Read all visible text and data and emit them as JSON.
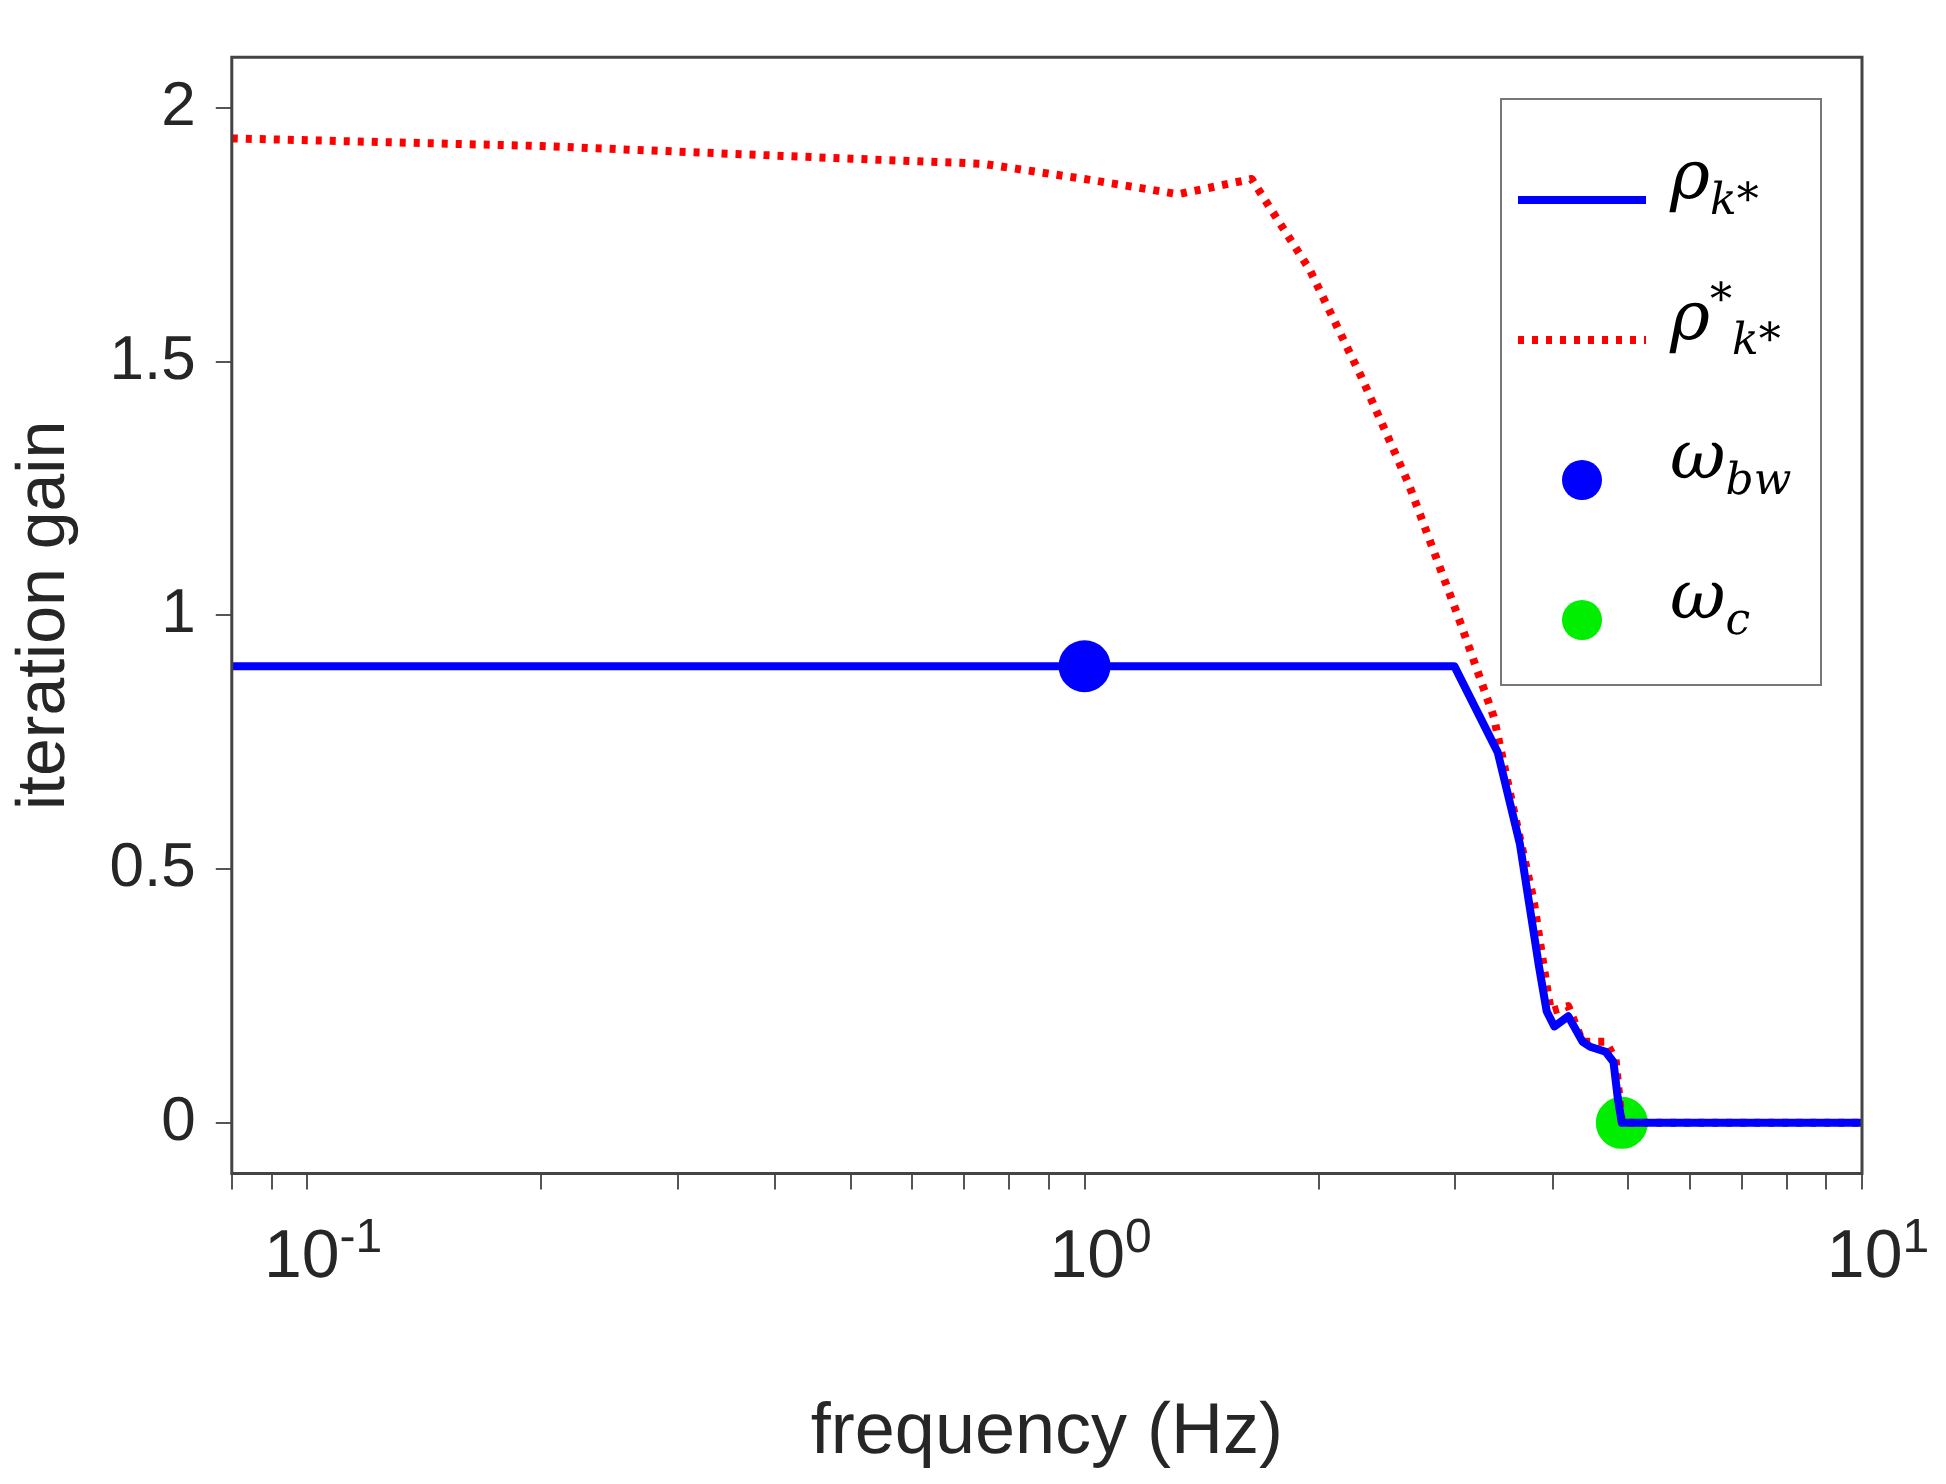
{
  "chart_data": {
    "type": "line",
    "xlabel": "frequency (Hz)",
    "ylabel": "iteration gain",
    "log": "x",
    "xlim": [
      0.08,
      10
    ],
    "ylim": [
      -0.1,
      2.1
    ],
    "xticks": [
      {
        "value": 0.08,
        "label": null
      },
      {
        "value": 0.09,
        "label": null
      },
      {
        "value": 0.1,
        "label": "10$^{-1}$"
      },
      {
        "value": 0.2,
        "label": null
      },
      {
        "value": 0.3,
        "label": null
      },
      {
        "value": 0.4,
        "label": null
      },
      {
        "value": 0.5,
        "label": null
      },
      {
        "value": 0.6,
        "label": null
      },
      {
        "value": 0.7,
        "label": null
      },
      {
        "value": 0.8,
        "label": null
      },
      {
        "value": 0.9,
        "label": null
      },
      {
        "value": 1,
        "label": "10$^{0}$"
      },
      {
        "value": 2,
        "label": null
      },
      {
        "value": 3,
        "label": null
      },
      {
        "value": 4,
        "label": null
      },
      {
        "value": 5,
        "label": null
      },
      {
        "value": 6,
        "label": null
      },
      {
        "value": 7,
        "label": null
      },
      {
        "value": 8,
        "label": null
      },
      {
        "value": 9,
        "label": null
      },
      {
        "value": 10,
        "label": "10$^{1}$"
      }
    ],
    "yticks": [
      0,
      0.5,
      1,
      1.5,
      2
    ],
    "grid": false,
    "legend": "top right",
    "series": [
      {
        "name": "ρ$_{k*}$",
        "color": "#0000ff",
        "line_style": "solid",
        "marker": "none",
        "x": [
          0.08,
          2.99,
          3.4,
          3.63,
          3.84,
          3.93,
          4.02,
          4.19,
          4.37,
          4.47,
          4.68,
          4.79,
          4.85,
          4.91,
          10
        ],
        "values": [
          0.9,
          0.9,
          0.73,
          0.55,
          0.31,
          0.22,
          0.19,
          0.21,
          0.16,
          0.15,
          0.14,
          0.12,
          0.05,
          0,
          0
        ]
      },
      {
        "name": "ρ$^{*}$$_{k*}$",
        "color": "#ff0000",
        "line_style": "dotted",
        "marker": "none",
        "x": [
          0.08,
          0.2,
          0.5,
          0.74,
          1.0,
          1.32,
          1.64,
          1.95,
          2.27,
          2.61,
          3.02,
          3.36,
          3.56,
          3.78,
          3.93,
          3.98,
          4.19,
          4.37,
          4.68,
          4.82,
          4.91,
          10
        ],
        "values": [
          1.94,
          1.925,
          1.9,
          1.89,
          1.86,
          1.83,
          1.86,
          1.68,
          1.47,
          1.26,
          1.0,
          0.8,
          0.62,
          0.44,
          0.27,
          0.22,
          0.23,
          0.16,
          0.16,
          0.125,
          0,
          0
        ]
      },
      {
        "name": "ω$_{bw}$",
        "type": "scatter",
        "color": "#0000ff",
        "marker": "circle",
        "x": [
          1
        ],
        "values": [
          0.9
        ]
      },
      {
        "name": "ω$_{c}$",
        "type": "scatter",
        "color": "#00ee00",
        "marker": "circle",
        "x": [
          4.91
        ],
        "values": [
          0
        ]
      }
    ]
  }
}
